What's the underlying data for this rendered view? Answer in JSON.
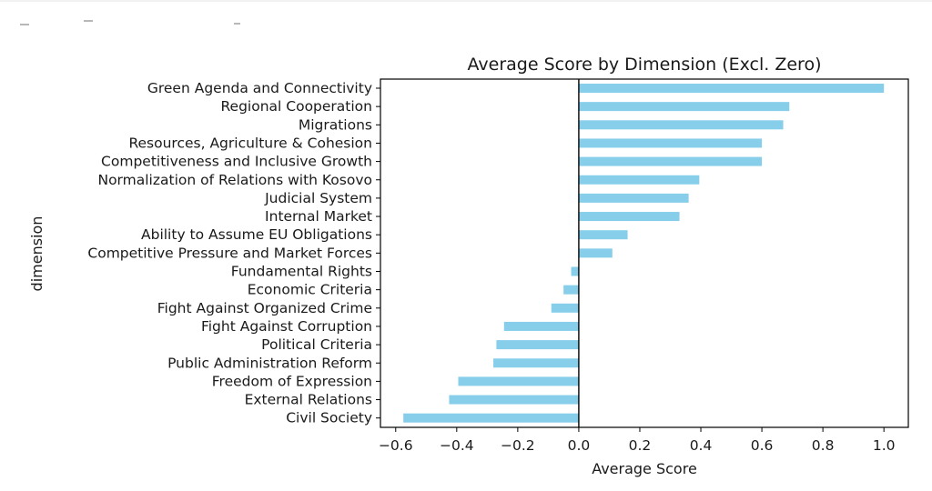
{
  "chart_data": {
    "type": "bar",
    "orientation": "horizontal",
    "title": "Average Score by Dimension (Excl. Zero)",
    "xlabel": "Average Score",
    "ylabel": "dimension",
    "xlim": [
      -0.65,
      1.08
    ],
    "xticks": [
      -0.6,
      -0.4,
      -0.2,
      0.0,
      0.2,
      0.4,
      0.6,
      0.8,
      1.0
    ],
    "xtick_labels": [
      "−0.6",
      "−0.4",
      "−0.2",
      "0.0",
      "0.2",
      "0.4",
      "0.6",
      "0.8",
      "1.0"
    ],
    "grid": false,
    "bar_color": "#87ceeb",
    "zero_line_color": "#000000",
    "categories": [
      "Green Agenda and Connectivity",
      "Regional Cooperation",
      "Migrations",
      "Resources, Agriculture & Cohesion",
      "Competitiveness and Inclusive Growth",
      "Normalization of Relations with Kosovo",
      "Judicial System",
      "Internal Market",
      "Ability to Assume EU Obligations",
      "Competitive Pressure and Market Forces",
      "Fundamental Rights",
      "Economic Criteria",
      "Fight Against Organized Crime",
      "Fight Against Corruption",
      "Political Criteria",
      "Public Administration Reform",
      "Freedom of Expression",
      "External Relations",
      "Civil Society"
    ],
    "values": [
      1.0,
      0.69,
      0.67,
      0.6,
      0.6,
      0.395,
      0.36,
      0.33,
      0.16,
      0.11,
      -0.025,
      -0.05,
      -0.09,
      -0.245,
      -0.27,
      -0.28,
      -0.395,
      -0.425,
      -0.575
    ]
  }
}
